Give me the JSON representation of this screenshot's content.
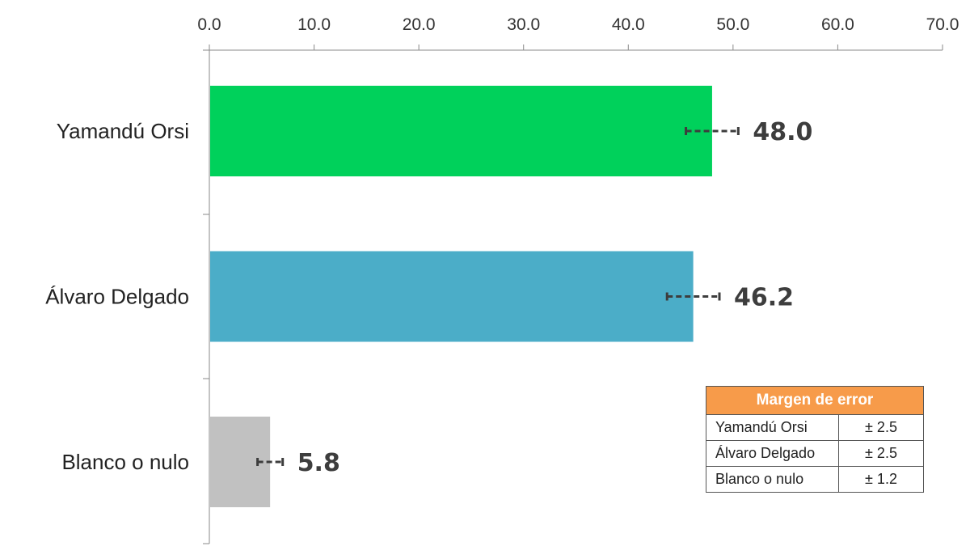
{
  "chart_data": {
    "type": "bar",
    "orientation": "horizontal",
    "categories": [
      "Yamandú Orsi",
      "Álvaro Delgado",
      "Blanco o nulo"
    ],
    "values": [
      48.0,
      46.2,
      5.8
    ],
    "value_labels": [
      "48.0",
      "46.2",
      "5.8"
    ],
    "error_margins": [
      2.5,
      2.5,
      1.2
    ],
    "colors": [
      "#00d15b",
      "#4badc8",
      "#c1c1c1"
    ],
    "xlim": [
      0,
      70
    ],
    "x_ticks": [
      "0.0",
      "10.0",
      "20.0",
      "30.0",
      "40.0",
      "50.0",
      "60.0",
      "70.0"
    ],
    "x_axis_position": "top",
    "grid": false,
    "error_bar_style": "dashed"
  },
  "error_table": {
    "header": "Margen de error",
    "header_color": "#f79b4a",
    "rows": [
      {
        "label": "Yamandú Orsi",
        "value": "± 2.5"
      },
      {
        "label": "Álvaro Delgado",
        "value": "± 2.5"
      },
      {
        "label": "Blanco o nulo",
        "value": "± 1.2"
      }
    ]
  }
}
